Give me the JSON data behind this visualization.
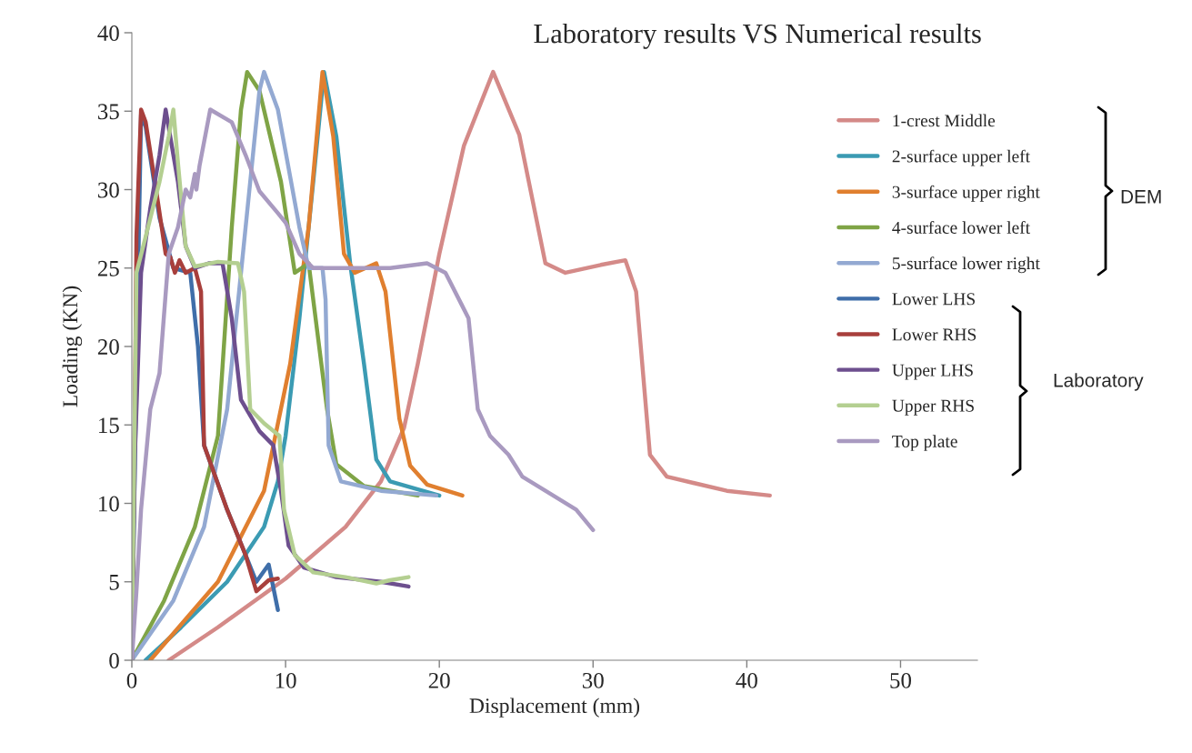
{
  "chart_data": {
    "type": "line",
    "title": "Laboratory results VS Numerical results",
    "xlabel": "Displacement (mm)",
    "ylabel": "Loading (KN)",
    "xlim": [
      0,
      55
    ],
    "ylim": [
      0,
      40
    ],
    "xticks": [
      0,
      10,
      20,
      30,
      40,
      50
    ],
    "yticks": [
      0,
      5,
      10,
      15,
      20,
      25,
      30,
      35,
      40
    ],
    "grid": false,
    "legend": "right",
    "marker": "none",
    "line_style": "solid",
    "annotations": [
      "DEM",
      "Laboratory"
    ],
    "series": [
      {
        "name": "1-crest Middle",
        "color": "#d48a88",
        "x": [
          2.4,
          5.6,
          10,
          13.9,
          16.2,
          17.7,
          18.6,
          20,
          21.6,
          23.5,
          25.2,
          26.9,
          28.2,
          30.5,
          32.1,
          32.8,
          33.7,
          34.8,
          38.7,
          41.5
        ],
        "values": [
          0,
          2.1,
          5.2,
          8.5,
          11.4,
          14.8,
          18.9,
          25.9,
          32.8,
          37.5,
          33.5,
          25.3,
          24.7,
          25.2,
          25.5,
          23.5,
          13.1,
          11.7,
          10.8,
          10.5
        ]
      },
      {
        "name": "2-surface upper left",
        "color": "#3b9bb3",
        "x": [
          0.9,
          3.2,
          6.2,
          8.6,
          9.5,
          10,
          10.9,
          11.8,
          12.5,
          13.3,
          14.2,
          15.1,
          15.9,
          16.8,
          20
        ],
        "values": [
          0,
          2.1,
          5,
          8.5,
          11.4,
          14.3,
          21.8,
          30.5,
          37.5,
          33.4,
          25.3,
          18.9,
          12.8,
          11.4,
          10.5
        ]
      },
      {
        "name": "3-surface upper right",
        "color": "#e07f2f",
        "x": [
          1.2,
          5.6,
          8.6,
          10.3,
          11.5,
          12.4,
          13.1,
          13.8,
          14.5,
          15.9,
          16.5,
          17.4,
          18.1,
          19.2,
          21.5
        ],
        "values": [
          0,
          5,
          10.8,
          18.9,
          27.6,
          37.5,
          33.4,
          25.9,
          24.7,
          25.3,
          23.5,
          15.4,
          12.4,
          11.2,
          10.5
        ]
      },
      {
        "name": "4-surface lower left",
        "color": "#7fa446",
        "x": [
          0,
          2.1,
          4.1,
          5.6,
          6.5,
          7.1,
          7.5,
          8.3,
          9.7,
          10.6,
          11.5,
          12.7,
          13.3,
          15.1,
          18.6
        ],
        "values": [
          0,
          3.8,
          8.5,
          14.3,
          27.6,
          35.1,
          37.5,
          36.3,
          30.5,
          24.7,
          25.3,
          16,
          12.5,
          11.1,
          10.5
        ]
      },
      {
        "name": "5-surface lower right",
        "color": "#93a9d2",
        "x": [
          0,
          2.7,
          4.7,
          6.2,
          7.4,
          8.3,
          8.6,
          9.5,
          10.9,
          11.5,
          12.4,
          12.6,
          12.8,
          13.6,
          16.2,
          19.8
        ],
        "values": [
          0,
          3.8,
          8.5,
          16,
          27.6,
          36.3,
          37.5,
          35.1,
          27.6,
          25,
          25,
          23,
          13.7,
          11.4,
          10.8,
          10.5
        ]
      },
      {
        "name": "Lower LHS",
        "color": "#3f6ea9",
        "x": [
          0,
          0.3,
          0.6,
          0.9,
          1.8,
          2.7,
          3.8,
          4.3,
          4.7,
          6.2,
          7.4,
          8.1,
          8.9,
          9.5
        ],
        "values": [
          0,
          18.9,
          34.8,
          34,
          28.2,
          25,
          24.7,
          20,
          13.7,
          9.6,
          6.7,
          5,
          6.1,
          3.2
        ]
      },
      {
        "name": "Lower RHS",
        "color": "#a83f3c",
        "x": [
          0,
          0.2,
          0.3,
          0.6,
          0.9,
          1.5,
          2.2,
          2.5,
          2.8,
          3.1,
          3.5,
          4.1,
          4.5,
          4.7,
          6.2,
          7.4,
          8.1,
          8.9,
          9.5
        ],
        "values": [
          0,
          16,
          27,
          35.1,
          34.3,
          30.5,
          25.9,
          25.7,
          24.7,
          25.5,
          24.7,
          25,
          23.5,
          13.7,
          9.6,
          6.7,
          4.4,
          5.1,
          5.2
        ]
      },
      {
        "name": "Upper LHS",
        "color": "#6d4f8e",
        "x": [
          0,
          0.2,
          0.6,
          1.2,
          1.8,
          2.2,
          3,
          3.5,
          4.1,
          5,
          5.9,
          6.5,
          7.1,
          8.3,
          9.2,
          9.7,
          10.2,
          11.2,
          13.3,
          16.2,
          18
        ],
        "values": [
          0,
          13.1,
          24.7,
          28.8,
          32.2,
          35.1,
          30.5,
          26.4,
          25,
          25.3,
          25.3,
          21.8,
          16.6,
          14.6,
          13.7,
          10.8,
          7.3,
          5.9,
          5.3,
          5,
          4.7
        ]
      },
      {
        "name": "Upper RHS",
        "color": "#b4cf91",
        "x": [
          0,
          0.3,
          0.9,
          1.8,
          2.4,
          2.7,
          3,
          3.5,
          4.1,
          5.6,
          6.9,
          7.3,
          7.7,
          8.6,
          9.6,
          9.9,
          10.6,
          11.8,
          13.9,
          15.9,
          16.8,
          18
        ],
        "values": [
          0,
          24.7,
          27,
          30.5,
          33.4,
          35.1,
          31.7,
          26.4,
          25.1,
          25.4,
          25.3,
          23.5,
          16,
          15.1,
          14.3,
          9.6,
          6.7,
          5.6,
          5.3,
          4.9,
          5.1,
          5.3
        ]
      },
      {
        "name": "Top plate",
        "color": "#a99ac0",
        "x": [
          0,
          0.3,
          0.6,
          1.2,
          1.8,
          2.4,
          3,
          3.5,
          3.8,
          4.1,
          4.2,
          4.4,
          5.1,
          6.5,
          7.4,
          8.3,
          9.5,
          10,
          10.9,
          11.8,
          13.9,
          16.8,
          19.2,
          20.4,
          21.9,
          22.5,
          23.3,
          24.5,
          25.4,
          26.9,
          28.9,
          30
        ],
        "values": [
          0,
          4.4,
          9.6,
          16,
          18.3,
          25.9,
          27.6,
          30,
          29.5,
          31,
          30,
          31.5,
          35.1,
          34.3,
          32.2,
          29.9,
          28.5,
          27.9,
          25.9,
          25,
          25,
          25,
          25.3,
          24.7,
          21.8,
          16,
          14.3,
          13.1,
          11.7,
          10.8,
          9.6,
          8.3
        ]
      }
    ]
  }
}
